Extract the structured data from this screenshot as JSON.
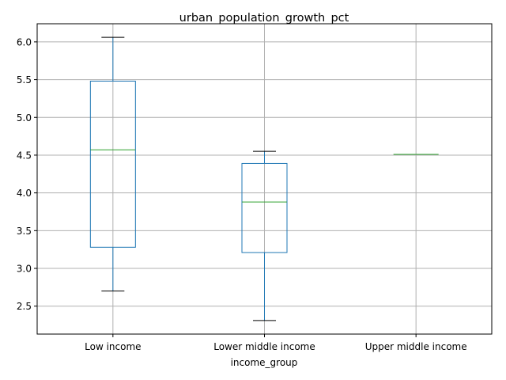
{
  "chart_data": {
    "type": "box",
    "title": "urban_population_growth_pct",
    "xlabel": "income_group",
    "ylabel": "",
    "ylim": [
      2.13,
      6.24
    ],
    "yticks": [
      2.5,
      3.0,
      3.5,
      4.0,
      4.5,
      5.0,
      5.5,
      6.0
    ],
    "ytick_labels": [
      "2.5",
      "3.0",
      "3.5",
      "4.0",
      "4.5",
      "5.0",
      "5.5",
      "6.0"
    ],
    "grid": true,
    "categories": [
      "Low income",
      "Lower middle income",
      "Upper middle income"
    ],
    "boxes": [
      {
        "category": "Low income",
        "whisker_low": 2.7,
        "q1": 3.28,
        "median": 4.57,
        "q3": 5.48,
        "whisker_high": 6.06
      },
      {
        "category": "Lower middle income",
        "whisker_low": 2.31,
        "q1": 3.21,
        "median": 3.88,
        "q3": 4.39,
        "whisker_high": 4.55
      },
      {
        "category": "Upper middle income",
        "whisker_low": 4.51,
        "q1": 4.51,
        "median": 4.51,
        "q3": 4.51,
        "whisker_high": 4.51
      }
    ],
    "colors": {
      "box": "#1f77b4",
      "median": "#2ca02c",
      "cap": "#000000",
      "grid": "#b0b0b0"
    }
  }
}
